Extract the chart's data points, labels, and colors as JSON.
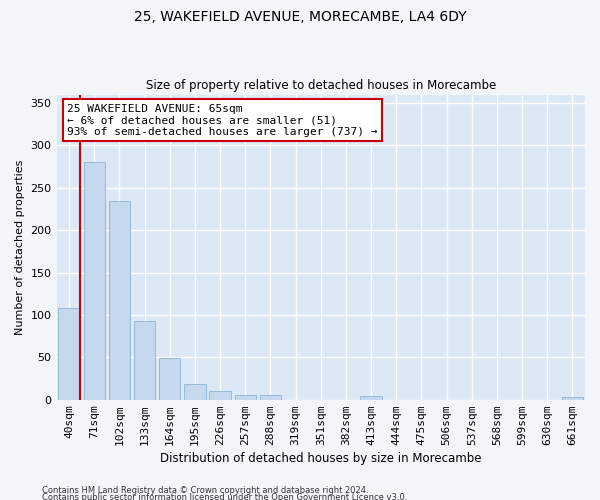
{
  "title1": "25, WAKEFIELD AVENUE, MORECAMBE, LA4 6DY",
  "title2": "Size of property relative to detached houses in Morecambe",
  "xlabel": "Distribution of detached houses by size in Morecambe",
  "ylabel": "Number of detached properties",
  "categories": [
    "40sqm",
    "71sqm",
    "102sqm",
    "133sqm",
    "164sqm",
    "195sqm",
    "226sqm",
    "257sqm",
    "288sqm",
    "319sqm",
    "351sqm",
    "382sqm",
    "413sqm",
    "444sqm",
    "475sqm",
    "506sqm",
    "537sqm",
    "568sqm",
    "599sqm",
    "630sqm",
    "661sqm"
  ],
  "values": [
    108,
    280,
    234,
    93,
    49,
    18,
    10,
    5,
    5,
    0,
    0,
    0,
    4,
    0,
    0,
    0,
    0,
    0,
    0,
    0,
    3
  ],
  "bar_color": "#c5d8ed",
  "bar_edge_color": "#8ab4d4",
  "marker_color": "#cc0000",
  "annotation_text": "25 WAKEFIELD AVENUE: 65sqm\n← 6% of detached houses are smaller (51)\n93% of semi-detached houses are larger (737) →",
  "annotation_box_color": "#ffffff",
  "annotation_box_edge": "#cc0000",
  "ylim": [
    0,
    360
  ],
  "yticks": [
    0,
    50,
    100,
    150,
    200,
    250,
    300,
    350
  ],
  "bg_color": "#dce8f5",
  "fig_bg_color": "#f2f6fb",
  "grid_color": "#ffffff",
  "footer1": "Contains HM Land Registry data © Crown copyright and database right 2024.",
  "footer2": "Contains public sector information licensed under the Open Government Licence v3.0."
}
